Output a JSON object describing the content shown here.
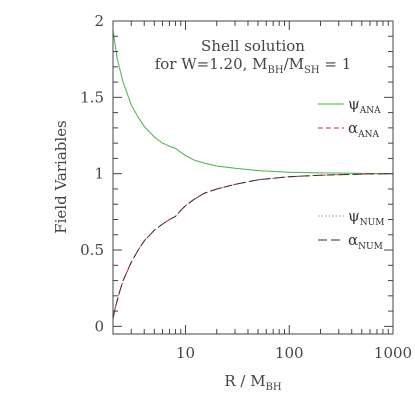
{
  "chart_data": {
    "type": "line",
    "title": "Shell solution",
    "subtitle": {
      "prefix": "for W=1.20, M",
      "sub1": "BH",
      "mid": "/M",
      "sub2": "SH",
      "suffix": " = 1"
    },
    "xlabel": {
      "main": "R / M",
      "sub": "BH"
    },
    "ylabel": "Field Variables",
    "xscale": "log",
    "xlim": [
      2,
      1000
    ],
    "ylim": [
      -0.05,
      2
    ],
    "xticks": [
      10,
      100,
      1000
    ],
    "xtick_labels": [
      "10",
      "100",
      "1000"
    ],
    "yticks": [
      0,
      0.5,
      1,
      1.5,
      2
    ],
    "ytick_labels": [
      "0",
      "0.5",
      "1",
      "1.5",
      "2"
    ],
    "grid": false,
    "legend_position": "right",
    "series": [
      {
        "name": "ψANA",
        "symbol": "ψ",
        "sub": "ANA",
        "color": "#22cc22",
        "dash": "solid",
        "x": [
          2.0,
          2.2,
          2.5,
          3,
          3.5,
          4,
          5,
          6,
          7,
          8,
          9,
          10,
          12,
          15,
          20,
          30,
          50,
          100,
          200,
          500,
          1000
        ],
        "y": [
          1.94,
          1.75,
          1.6,
          1.45,
          1.37,
          1.31,
          1.24,
          1.2,
          1.18,
          1.165,
          1.14,
          1.12,
          1.09,
          1.07,
          1.05,
          1.035,
          1.02,
          1.01,
          1.005,
          1.002,
          1.0
        ]
      },
      {
        "name": "αANA",
        "symbol": "α",
        "sub": "ANA",
        "color": "#cc2222",
        "dash": "dashed",
        "x": [
          2.0,
          2.1,
          2.3,
          2.5,
          3,
          3.5,
          4,
          5,
          6,
          7,
          8,
          9,
          10,
          12,
          15,
          20,
          30,
          50,
          100,
          200,
          500,
          1000
        ],
        "y": [
          0.05,
          0.12,
          0.22,
          0.3,
          0.42,
          0.5,
          0.56,
          0.63,
          0.67,
          0.7,
          0.72,
          0.76,
          0.79,
          0.83,
          0.87,
          0.9,
          0.93,
          0.96,
          0.98,
          0.99,
          0.997,
          1.0
        ]
      },
      {
        "name": "ψNUM",
        "symbol": "ψ",
        "sub": "NUM",
        "color": "#999999",
        "dash": "dotted",
        "x": [
          2.0,
          2.2,
          2.5,
          3,
          3.5,
          4,
          5,
          6,
          7,
          8,
          9,
          10,
          12,
          15,
          20,
          30,
          50,
          100,
          200,
          500,
          1000
        ],
        "y": [
          1.94,
          1.75,
          1.6,
          1.45,
          1.37,
          1.31,
          1.24,
          1.2,
          1.18,
          1.165,
          1.14,
          1.12,
          1.09,
          1.07,
          1.05,
          1.035,
          1.02,
          1.01,
          1.005,
          1.002,
          1.0
        ]
      },
      {
        "name": "αNUM",
        "symbol": "α",
        "sub": "NUM",
        "color": "#333333",
        "dash": "longdash",
        "x": [
          2.0,
          2.1,
          2.3,
          2.5,
          3,
          3.5,
          4,
          5,
          6,
          7,
          8,
          9,
          10,
          12,
          15,
          20,
          30,
          50,
          100,
          200,
          500,
          1000
        ],
        "y": [
          0.05,
          0.12,
          0.22,
          0.3,
          0.42,
          0.5,
          0.56,
          0.63,
          0.67,
          0.7,
          0.72,
          0.76,
          0.79,
          0.83,
          0.87,
          0.9,
          0.93,
          0.96,
          0.98,
          0.99,
          0.997,
          1.0
        ]
      }
    ]
  }
}
